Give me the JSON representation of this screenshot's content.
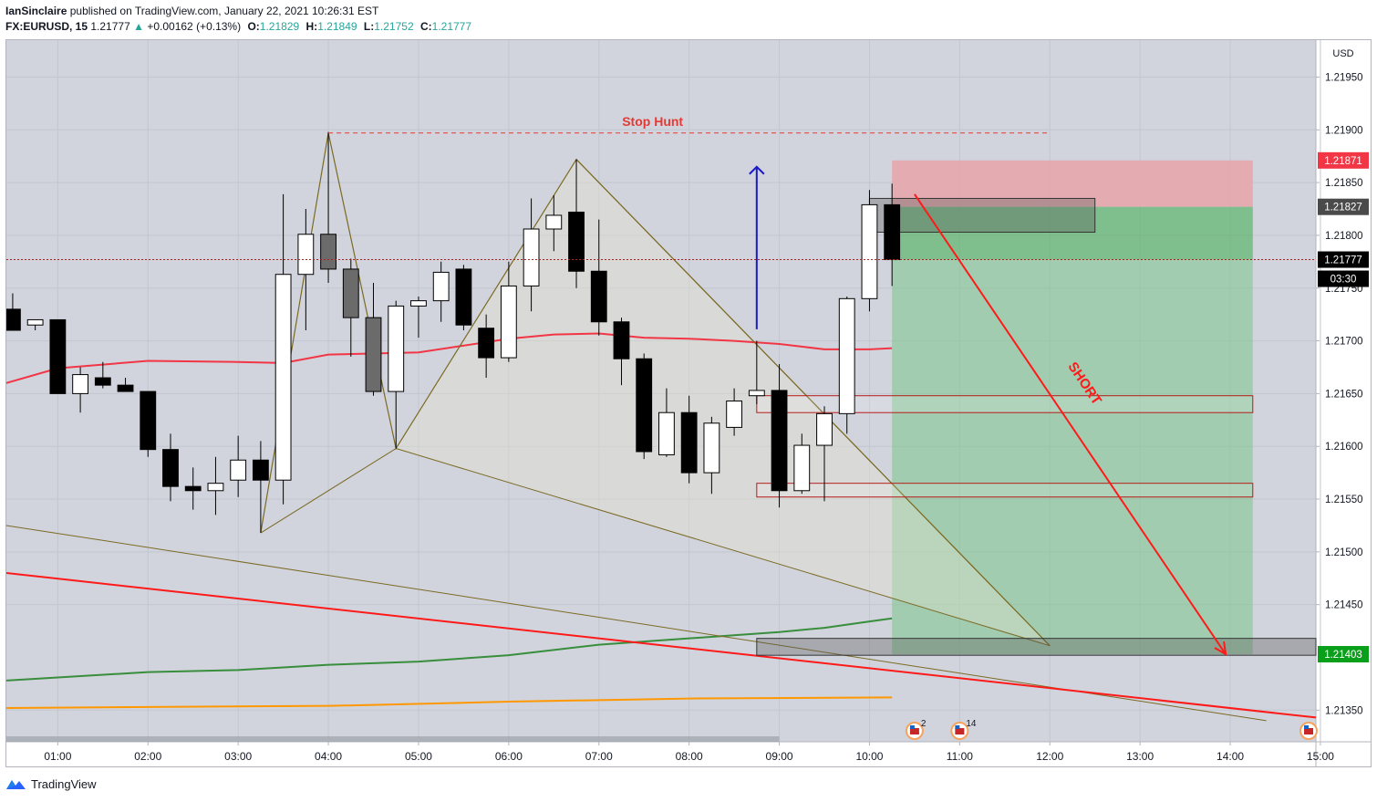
{
  "header": {
    "author": "IanSinclaire",
    "published_text": "published on TradingView.com, January 22, 2021 10:26:31 EST",
    "symbol": "FX:EURUSD, 15",
    "last": "1.21777",
    "change": "+0.00162 (+0.13%)",
    "open_label": "O:",
    "open": "1.21829",
    "high_label": "H:",
    "high": "1.21849",
    "low_label": "L:",
    "low": "1.21752",
    "close_label": "C:",
    "close": "1.21777",
    "change_arrow_icon": "triangle-up-icon"
  },
  "footer": {
    "brand": "TradingView",
    "logo_icon": "tradingview-logo-icon"
  },
  "chart_data": {
    "type": "candlestick",
    "currency": "USD",
    "ylim": [
      1.2132,
      1.21985
    ],
    "y_ticks": [
      "1.21950",
      "1.21900",
      "1.21850",
      "1.21800",
      "1.21750",
      "1.21700",
      "1.21650",
      "1.21600",
      "1.21550",
      "1.21500",
      "1.21450",
      "1.21350"
    ],
    "x_ticks": [
      "01:00",
      "02:00",
      "03:00",
      "04:00",
      "05:00",
      "06:00",
      "07:00",
      "08:00",
      "09:00",
      "10:00",
      "11:00",
      "12:00",
      "13:00",
      "14:00",
      "15:00"
    ],
    "x_tick_times": [
      1,
      2,
      3,
      4,
      5,
      6,
      7,
      8,
      9,
      10,
      11,
      12,
      13,
      14,
      15
    ],
    "xlim_hours": [
      0.43,
      14.95
    ],
    "candles": [
      {
        "t": 0.5,
        "o": 1.2173,
        "h": 1.21745,
        "l": 1.2171,
        "c": 1.2171
      },
      {
        "t": 0.75,
        "o": 1.21715,
        "h": 1.2172,
        "l": 1.2171,
        "c": 1.2172
      },
      {
        "t": 1.0,
        "o": 1.2172,
        "h": 1.2172,
        "l": 1.2165,
        "c": 1.2165
      },
      {
        "t": 1.25,
        "o": 1.2165,
        "h": 1.21675,
        "l": 1.21632,
        "c": 1.21668
      },
      {
        "t": 1.5,
        "o": 1.21665,
        "h": 1.2168,
        "l": 1.21655,
        "c": 1.21658
      },
      {
        "t": 1.75,
        "o": 1.21658,
        "h": 1.21665,
        "l": 1.21652,
        "c": 1.21652
      },
      {
        "t": 2.0,
        "o": 1.21652,
        "h": 1.21652,
        "l": 1.2159,
        "c": 1.21597
      },
      {
        "t": 2.25,
        "o": 1.21597,
        "h": 1.21612,
        "l": 1.21548,
        "c": 1.21562
      },
      {
        "t": 2.5,
        "o": 1.21562,
        "h": 1.2158,
        "l": 1.2154,
        "c": 1.21558
      },
      {
        "t": 2.75,
        "o": 1.21558,
        "h": 1.2159,
        "l": 1.21535,
        "c": 1.21565
      },
      {
        "t": 3.0,
        "o": 1.21568,
        "h": 1.2161,
        "l": 1.21552,
        "c": 1.21587
      },
      {
        "t": 3.25,
        "o": 1.21587,
        "h": 1.21605,
        "l": 1.21518,
        "c": 1.21568
      },
      {
        "t": 3.5,
        "o": 1.21568,
        "h": 1.21839,
        "l": 1.21545,
        "c": 1.21763
      },
      {
        "t": 3.75,
        "o": 1.21763,
        "h": 1.21825,
        "l": 1.2171,
        "c": 1.21801
      },
      {
        "t": 4.0,
        "o": 1.21801,
        "h": 1.21898,
        "l": 1.21755,
        "c": 1.21768
      },
      {
        "t": 4.25,
        "o": 1.21768,
        "h": 1.21778,
        "l": 1.21685,
        "c": 1.21722
      },
      {
        "t": 4.5,
        "o": 1.21722,
        "h": 1.21755,
        "l": 1.21648,
        "c": 1.21652
      },
      {
        "t": 4.75,
        "o": 1.21652,
        "h": 1.21738,
        "l": 1.21598,
        "c": 1.21733
      },
      {
        "t": 5.0,
        "o": 1.21733,
        "h": 1.21742,
        "l": 1.21703,
        "c": 1.21738
      },
      {
        "t": 5.25,
        "o": 1.21738,
        "h": 1.21775,
        "l": 1.21718,
        "c": 1.21765
      },
      {
        "t": 5.5,
        "o": 1.21768,
        "h": 1.21772,
        "l": 1.2171,
        "c": 1.21715
      },
      {
        "t": 5.75,
        "o": 1.21712,
        "h": 1.21725,
        "l": 1.21665,
        "c": 1.21684
      },
      {
        "t": 6.0,
        "o": 1.21684,
        "h": 1.21775,
        "l": 1.2168,
        "c": 1.21752
      },
      {
        "t": 6.25,
        "o": 1.21752,
        "h": 1.21835,
        "l": 1.21728,
        "c": 1.21806
      },
      {
        "t": 6.5,
        "o": 1.21806,
        "h": 1.21838,
        "l": 1.21785,
        "c": 1.21819
      },
      {
        "t": 6.75,
        "o": 1.21822,
        "h": 1.21872,
        "l": 1.2175,
        "c": 1.21766
      },
      {
        "t": 7.0,
        "o": 1.21766,
        "h": 1.21815,
        "l": 1.21705,
        "c": 1.21718
      },
      {
        "t": 7.25,
        "o": 1.21718,
        "h": 1.21722,
        "l": 1.21658,
        "c": 1.21683
      },
      {
        "t": 7.5,
        "o": 1.21683,
        "h": 1.21688,
        "l": 1.21588,
        "c": 1.21595
      },
      {
        "t": 7.75,
        "o": 1.21592,
        "h": 1.21655,
        "l": 1.2159,
        "c": 1.21632
      },
      {
        "t": 8.0,
        "o": 1.21632,
        "h": 1.21648,
        "l": 1.21565,
        "c": 1.21575
      },
      {
        "t": 8.25,
        "o": 1.21575,
        "h": 1.21628,
        "l": 1.21555,
        "c": 1.21622
      },
      {
        "t": 8.5,
        "o": 1.21618,
        "h": 1.21655,
        "l": 1.2161,
        "c": 1.21643
      },
      {
        "t": 8.75,
        "o": 1.21648,
        "h": 1.217,
        "l": 1.2164,
        "c": 1.21653
      },
      {
        "t": 9.0,
        "o": 1.21653,
        "h": 1.21678,
        "l": 1.21542,
        "c": 1.21558
      },
      {
        "t": 9.25,
        "o": 1.21558,
        "h": 1.21612,
        "l": 1.21555,
        "c": 1.21601
      },
      {
        "t": 9.5,
        "o": 1.21601,
        "h": 1.21638,
        "l": 1.21548,
        "c": 1.21631
      },
      {
        "t": 9.75,
        "o": 1.21631,
        "h": 1.21742,
        "l": 1.21612,
        "c": 1.2174
      },
      {
        "t": 10.0,
        "o": 1.2174,
        "h": 1.21843,
        "l": 1.21728,
        "c": 1.21829
      },
      {
        "t": 10.25,
        "o": 1.21829,
        "h": 1.21849,
        "l": 1.21752,
        "c": 1.21777
      }
    ],
    "moving_averages": [
      {
        "color": "#f23645",
        "points": [
          [
            0.43,
            1.2166
          ],
          [
            1.0,
            1.21674
          ],
          [
            2.0,
            1.21681
          ],
          [
            3.0,
            1.2168
          ],
          [
            3.5,
            1.21679
          ],
          [
            4.0,
            1.21687
          ],
          [
            5.0,
            1.21689
          ],
          [
            6.0,
            1.21702
          ],
          [
            6.5,
            1.21706
          ],
          [
            7.0,
            1.21707
          ],
          [
            7.5,
            1.21703
          ],
          [
            8.0,
            1.21702
          ],
          [
            8.5,
            1.217
          ],
          [
            9.0,
            1.21697
          ],
          [
            9.5,
            1.21692
          ],
          [
            10.0,
            1.21692
          ],
          [
            10.25,
            1.21693
          ]
        ]
      },
      {
        "color": "#388e3c",
        "points": [
          [
            0.43,
            1.21378
          ],
          [
            1.0,
            1.21381
          ],
          [
            2.0,
            1.21386
          ],
          [
            3.0,
            1.21388
          ],
          [
            4.0,
            1.21393
          ],
          [
            5.0,
            1.21396
          ],
          [
            6.0,
            1.21402
          ],
          [
            7.0,
            1.21412
          ],
          [
            8.0,
            1.21418
          ],
          [
            9.0,
            1.21424
          ],
          [
            9.5,
            1.21428
          ],
          [
            10.0,
            1.21434
          ],
          [
            10.25,
            1.21437
          ]
        ]
      },
      {
        "color": "#ff9800",
        "points": [
          [
            0.43,
            1.21352
          ],
          [
            2.0,
            1.21353
          ],
          [
            4.0,
            1.21354
          ],
          [
            6.0,
            1.21358
          ],
          [
            8.0,
            1.21361
          ],
          [
            10.25,
            1.21362
          ]
        ]
      }
    ],
    "annotations": {
      "stop_hunt_label": "Stop Hunt",
      "stop_hunt_line": {
        "t1": 4.0,
        "t2": 12.0,
        "price": 1.21897
      },
      "short_label": "SHORT",
      "short_arrow": {
        "t1": 10.5,
        "p1": 1.21839,
        "t2": 13.95,
        "p2": 1.21403
      },
      "blue_arrow": {
        "t": 8.75,
        "p1": 1.21711,
        "p2": 1.21865
      },
      "position": {
        "t1": 10.25,
        "t2": 14.25,
        "entry": 1.21827,
        "stop": 1.21871,
        "target": 1.21403
      },
      "zones": [
        {
          "t1": 10.0,
          "t2": 12.5,
          "p1": 1.21835,
          "p2": 1.21803,
          "style": "dark"
        },
        {
          "t1": 8.75,
          "t2": 14.25,
          "p1": 1.21648,
          "p2": 1.21632,
          "style": "red"
        },
        {
          "t1": 8.75,
          "t2": 14.25,
          "p1": 1.21565,
          "p2": 1.21552,
          "style": "red"
        },
        {
          "t1": 8.75,
          "t2": 14.95,
          "p1": 1.21418,
          "p2": 1.21402,
          "style": "dark"
        }
      ],
      "pattern": [
        [
          3.25,
          1.21518
        ],
        [
          4.0,
          1.21897
        ],
        [
          4.75,
          1.21598
        ],
        [
          6.75,
          1.21872
        ],
        [
          12.0,
          1.21411
        ]
      ],
      "pattern_lines": [
        [
          [
            3.25,
            1.21518
          ],
          [
            4.75,
            1.21598
          ]
        ],
        [
          [
            4.75,
            1.21598
          ],
          [
            12.0,
            1.21411
          ]
        ],
        [
          [
            6.75,
            1.21872
          ],
          [
            12.0,
            1.21411
          ]
        ],
        [
          [
            0.43,
            1.21525
          ],
          [
            14.4,
            1.2134
          ]
        ]
      ],
      "trend_line": [
        [
          0.43,
          1.2148
        ],
        [
          14.95,
          1.21343
        ]
      ],
      "events": [
        {
          "t": 10.5,
          "count": "2"
        },
        {
          "t": 11.0,
          "count": "14"
        },
        {
          "t": 14.95,
          "count": ""
        }
      ],
      "event_icon": "us-flag-icon"
    },
    "price_labels": [
      {
        "value": "1.21871",
        "bg": "#f23645",
        "fg": "#ffffff"
      },
      {
        "value": "1.21827",
        "bg": "#4a4a4a",
        "fg": "#ffffff"
      },
      {
        "value": "1.21777",
        "bg": "#000000",
        "fg": "#ffffff"
      },
      {
        "value": "03:30",
        "bg": "#000000",
        "fg": "#ffffff"
      },
      {
        "value": "1.21403",
        "bg": "#0a9f1a",
        "fg": "#ffffff"
      }
    ],
    "colors": {
      "background": "#d1d4dc",
      "grid": "#c3c6cf",
      "up_candle": "#ffffff",
      "down_candle": "#000000",
      "faded_down_candle": "#6b6b6b",
      "stop_zone": "#e8a5a9",
      "target_zone": "#7cc48a",
      "stop_hunt": "#e53935",
      "short_arrow": "#ff1a1a",
      "blue_arrow": "#1a1acc",
      "pattern_line": "#7b6a24",
      "current_price_line": "#b71c1c"
    }
  }
}
